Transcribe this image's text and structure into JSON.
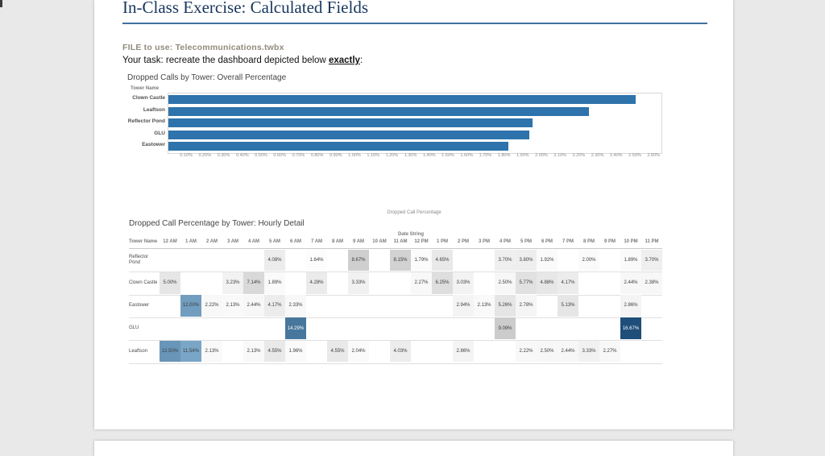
{
  "page": {
    "title": "In-Class Exercise: Calculated Fields",
    "file_line": "FILE to use: Telecommunications.twbx",
    "task_prefix": "Your task: recreate the dashboard depicted below ",
    "task_emphasis": "exactly",
    "task_suffix": ":"
  },
  "chart_data": [
    {
      "type": "bar",
      "title": "Dropped Calls by Tower: Overall Percentage",
      "row_header": "Tower Name",
      "categories": [
        "Clown Castle",
        "Leaftson",
        "Reflector Pond",
        "GLU",
        "Eastower"
      ],
      "values": [
        2.5,
        2.25,
        1.95,
        1.93,
        1.82
      ],
      "xlabel": "Dropped Call Percentage",
      "xlim": [
        0,
        2.638
      ],
      "tick_labels": [
        "0.10%",
        "0.20%",
        "0.30%",
        "0.40%",
        "0.50%",
        "0.60%",
        "0.70%",
        "0.80%",
        "0.90%",
        "1.00%",
        "1.10%",
        "1.20%",
        "1.30%",
        "1.40%",
        "1.50%",
        "1.60%",
        "1.70%",
        "1.80%",
        "1.90%",
        "2.00%",
        "2.10%",
        "2.20%",
        "2.30%",
        "2.40%",
        "2.50%",
        "2.60%"
      ],
      "bar_color": "#2e73ab",
      "grid": false,
      "legend": false
    },
    {
      "type": "heatmap",
      "title": "Dropped Call Percentage by Tower: Hourly Detail",
      "col_group_label": "Date String",
      "row_header": "Tower Name",
      "columns": [
        "12 AM",
        "1 AM",
        "2 AM",
        "3 AM",
        "4 AM",
        "5 AM",
        "6 AM",
        "7 AM",
        "8 AM",
        "9 AM",
        "10 AM",
        "11 AM",
        "12 PM",
        "1 PM",
        "2 PM",
        "3 PM",
        "4 PM",
        "5 PM",
        "6 PM",
        "7 PM",
        "8 PM",
        "9 PM",
        "10 PM",
        "11 PM"
      ],
      "value_format": "percent_2dp",
      "color_low": "#fdfdfd",
      "color_mid_gray": "#c3c3c3",
      "color_high": "#1e4e79",
      "rows": [
        {
          "name": "Reflector Pond",
          "cells": {
            "5 AM": 4.08,
            "7 AM": 1.64,
            "9 AM": 8.67,
            "11 AM": 8.15,
            "12 PM": 1.79,
            "1 PM": 4.65,
            "4 PM": 3.7,
            "5 PM": 3.8,
            "6 PM": 1.92,
            "8 PM": 2.0,
            "10 PM": 1.89,
            "11 PM": 3.7
          }
        },
        {
          "name": "Clown Castle",
          "cells": {
            "12 AM": 5.0,
            "3 AM": 3.23,
            "4 AM": 7.14,
            "5 AM": 1.89,
            "7 AM": 4.28,
            "9 AM": 3.33,
            "12 PM": 2.27,
            "1 PM": 6.25,
            "2 PM": 3.03,
            "4 PM": 2.5,
            "5 PM": 5.77,
            "6 PM": 4.88,
            "7 PM": 4.17,
            "10 PM": 2.44,
            "11 PM": 2.38
          }
        },
        {
          "name": "Eastower",
          "cells": {
            "1 AM": 12.0,
            "2 AM": 2.22,
            "3 AM": 2.13,
            "4 AM": 2.44,
            "5 AM": 4.17,
            "6 AM": 2.33,
            "2 PM": 2.94,
            "3 PM": 2.13,
            "4 PM": 5.26,
            "5 PM": 2.78,
            "7 PM": 5.13,
            "10 PM": 2.86
          }
        },
        {
          "name": "GLU",
          "cells": {
            "6 AM": 14.29,
            "4 PM": 9.09,
            "10 PM": 16.67
          }
        },
        {
          "name": "Leaftson",
          "cells": {
            "12 AM": 12.5,
            "1 AM": 11.54,
            "2 AM": 2.13,
            "4 AM": 2.13,
            "5 AM": 4.55,
            "6 AM": 1.96,
            "8 AM": 4.55,
            "9 AM": 2.04,
            "11 AM": 4.03,
            "2 PM": 2.86,
            "5 PM": 2.22,
            "6 PM": 2.5,
            "7 PM": 2.44,
            "8 PM": 3.33,
            "9 PM": 2.27
          }
        }
      ]
    }
  ]
}
